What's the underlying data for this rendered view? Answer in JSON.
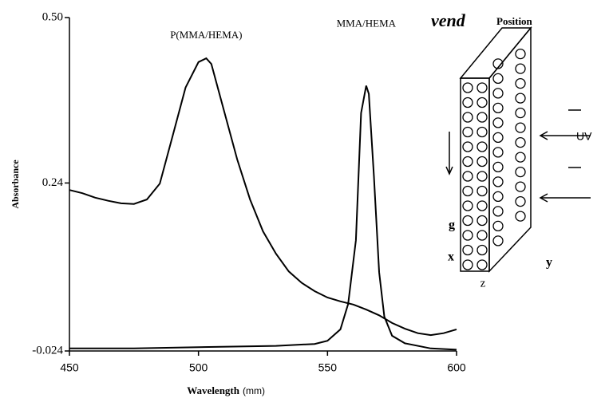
{
  "chart_data": {
    "type": "line",
    "ylabel": "Absorbance",
    "xlabel": "Wavelength",
    "xlabel_unit": "(mm)",
    "xlim": [
      450,
      600
    ],
    "xticks": [
      450,
      500,
      550,
      600
    ],
    "ylim": [
      -0.024,
      0.5
    ],
    "yticks": [
      -0.024,
      0.24,
      {
        "value": 0.5,
        "label": "0.50"
      }
    ],
    "series": [
      {
        "name": "P(MMA/HEMA)",
        "color": "#000000",
        "x": [
          450,
          455,
          460,
          465,
          470,
          475,
          480,
          485,
          490,
          495,
          500,
          503,
          505,
          510,
          515,
          520,
          525,
          530,
          535,
          540,
          545,
          550,
          555,
          560,
          565,
          570,
          575,
          580,
          585,
          590,
          595,
          600
        ],
        "values": [
          0.229,
          0.224,
          0.217,
          0.212,
          0.208,
          0.207,
          0.214,
          0.239,
          0.314,
          0.39,
          0.43,
          0.436,
          0.427,
          0.352,
          0.277,
          0.214,
          0.164,
          0.129,
          0.101,
          0.083,
          0.07,
          0.06,
          0.054,
          0.049,
          0.041,
          0.032,
          0.02,
          0.011,
          0.004,
          0.001,
          0.004,
          0.01
        ]
      },
      {
        "name": "MMA/HEMA",
        "color": "#000000",
        "x": [
          450,
          475,
          500,
          530,
          545,
          550,
          555,
          558,
          561,
          563,
          565,
          566,
          568,
          570,
          572,
          575,
          580,
          590,
          600
        ],
        "values": [
          -0.02,
          -0.02,
          -0.018,
          -0.016,
          -0.013,
          -0.008,
          0.01,
          0.05,
          0.15,
          0.35,
          0.393,
          0.38,
          0.25,
          0.1,
          0.03,
          0.0,
          -0.012,
          -0.02,
          -0.022
        ]
      }
    ]
  },
  "inset": {
    "title": "vend",
    "subtitle": "Position",
    "uv": "UV",
    "gravity": "g",
    "x_axis": "x",
    "y_axis": "y",
    "z_axis": "z"
  }
}
